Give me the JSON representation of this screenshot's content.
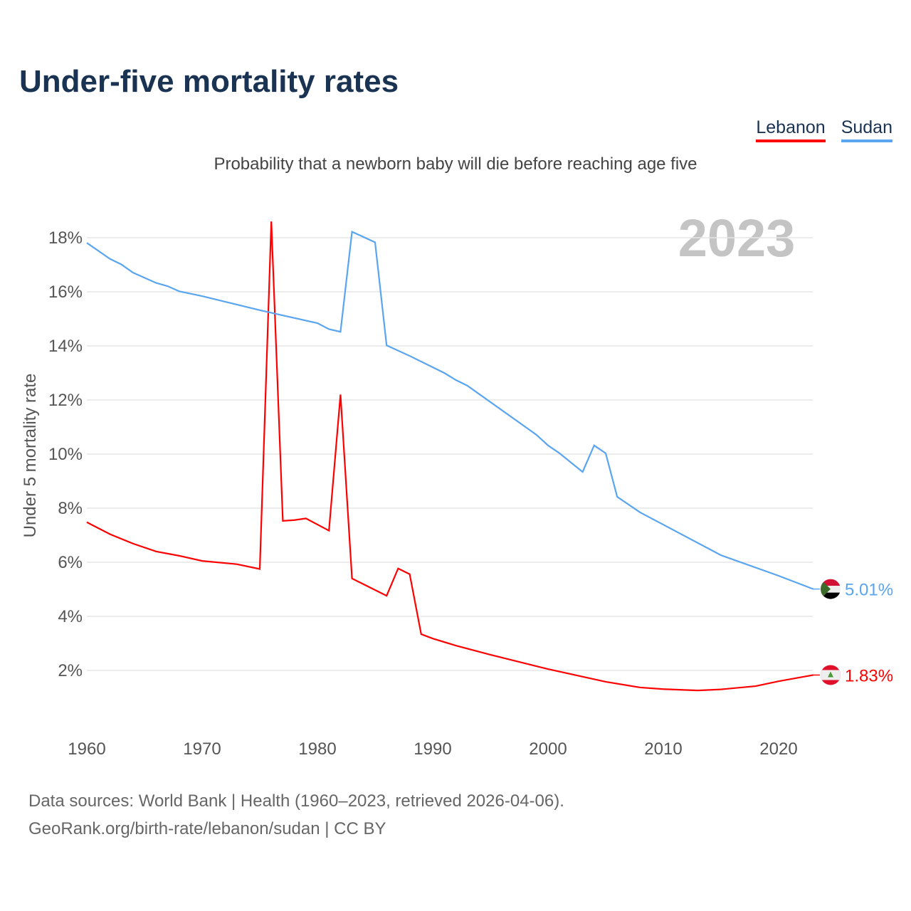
{
  "title": "Under-five mortality rates",
  "subtitle": "Probability that a newborn baby will die before reaching age five",
  "source_line1": "Data sources: World Bank | Health (1960–2023, retrieved 2026-04-06).",
  "source_line2": "GeoRank.org/birth-rate/lebanon/sudan | CC BY",
  "chart_data": {
    "type": "line",
    "title": "Under-five mortality rates",
    "ylabel": "Under 5 mortality rate",
    "xlabel": "",
    "year_label": "2023",
    "xlim": [
      1960,
      2023
    ],
    "ylim": [
      0,
      19
    ],
    "xticks": [
      "1960",
      "1970",
      "1980",
      "1990",
      "2000",
      "2010",
      "2020"
    ],
    "yticks": [
      "2%",
      "4%",
      "6%",
      "8%",
      "10%",
      "12%",
      "14%",
      "16%",
      "18%"
    ],
    "grid": true,
    "legend_placement": "top-right",
    "series": [
      {
        "name": "Lebanon",
        "color": "#ff0000",
        "end_label": "1.83%",
        "x": [
          1960,
          1962,
          1964,
          1966,
          1968,
          1970,
          1973,
          1975,
          1976,
          1977,
          1978,
          1979,
          1981,
          1982,
          1983,
          1986,
          1987,
          1988,
          1989,
          1990,
          1992,
          1995,
          2000,
          2005,
          2008,
          2010,
          2013,
          2015,
          2018,
          2020,
          2023
        ],
        "y": [
          7.48,
          7.04,
          6.69,
          6.4,
          6.24,
          6.05,
          5.93,
          5.75,
          18.6,
          7.53,
          7.56,
          7.62,
          7.17,
          12.2,
          5.4,
          4.76,
          5.77,
          5.56,
          3.34,
          3.18,
          2.92,
          2.58,
          2.05,
          1.58,
          1.37,
          1.31,
          1.26,
          1.3,
          1.42,
          1.6,
          1.83
        ]
      },
      {
        "name": "Sudan",
        "color": "#5aa5f0",
        "end_label": "5.01%",
        "x": [
          1960,
          1962,
          1963,
          1964,
          1966,
          1967,
          1968,
          1970,
          1975,
          1980,
          1981,
          1982,
          1983,
          1985,
          1986,
          1988,
          1991,
          1992,
          1993,
          1999,
          2000,
          2001,
          2003,
          2004,
          2005,
          2006,
          2008,
          2010,
          2015,
          2020,
          2023
        ],
        "y": [
          17.81,
          17.22,
          17.01,
          16.71,
          16.33,
          16.21,
          16.02,
          15.84,
          15.32,
          14.84,
          14.62,
          14.52,
          18.22,
          17.83,
          14.02,
          13.63,
          13.0,
          12.74,
          12.53,
          10.71,
          10.32,
          10.03,
          9.34,
          10.32,
          10.03,
          8.42,
          7.84,
          7.39,
          6.26,
          5.5,
          5.01
        ]
      }
    ]
  }
}
